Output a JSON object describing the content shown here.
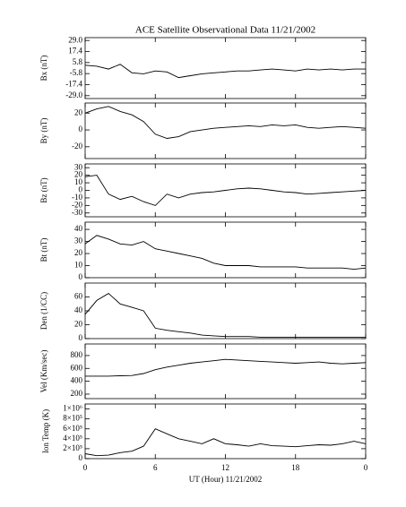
{
  "chart_data": [
    {
      "type": "line",
      "title": "ACE Satellite Observational Data   11/21/2002",
      "ylabel": "Bx (nT)",
      "color": "#000000",
      "x": [
        0,
        1,
        2,
        3,
        4,
        5,
        6,
        7,
        8,
        9,
        10,
        11,
        12,
        13,
        14,
        15,
        16,
        17,
        18,
        19,
        20,
        21,
        22,
        23,
        24
      ],
      "values": [
        3,
        2,
        -1,
        4,
        -5,
        -6,
        -3,
        -4,
        -10,
        -8,
        -6,
        -5,
        -4,
        -3,
        -3,
        -2,
        -1,
        -2,
        -3,
        -1,
        -2,
        -1,
        -2,
        -1,
        -1
      ],
      "xlim": [
        0,
        24
      ],
      "ylim": [
        -32,
        32
      ],
      "yticks": [
        {
          "value": 29,
          "label": "29.0"
        },
        17.4,
        5.8,
        -5.8,
        -17.4,
        {
          "value": -29,
          "label": "-29.0"
        }
      ]
    },
    {
      "type": "line",
      "ylabel": "By (nT)",
      "color": "#000000",
      "x": [
        0,
        1,
        2,
        3,
        4,
        5,
        6,
        7,
        8,
        9,
        10,
        11,
        12,
        13,
        14,
        15,
        16,
        17,
        18,
        19,
        20,
        21,
        22,
        23,
        24
      ],
      "values": [
        20,
        25,
        28,
        22,
        18,
        10,
        -5,
        -10,
        -8,
        -2,
        0,
        2,
        3,
        4,
        5,
        4,
        6,
        5,
        6,
        3,
        2,
        3,
        4,
        3,
        2
      ],
      "xlim": [
        0,
        24
      ],
      "ylim": [
        -34,
        32
      ],
      "yticks": [
        20,
        0,
        -20
      ]
    },
    {
      "type": "line",
      "ylabel": "Bz (nT)",
      "color": "#000000",
      "x": [
        0,
        1,
        2,
        3,
        4,
        5,
        6,
        7,
        8,
        9,
        10,
        11,
        12,
        13,
        14,
        15,
        16,
        17,
        18,
        19,
        20,
        21,
        22,
        23,
        24
      ],
      "values": [
        18,
        20,
        -5,
        -12,
        -8,
        -15,
        -20,
        -5,
        -10,
        -5,
        -3,
        -2,
        0,
        2,
        3,
        2,
        0,
        -2,
        -3,
        -5,
        -4,
        -3,
        -2,
        -1,
        0
      ],
      "xlim": [
        0,
        24
      ],
      "ylim": [
        -35,
        35
      ],
      "yticks": [
        30,
        20,
        10,
        0,
        -10,
        -20,
        -30
      ]
    },
    {
      "type": "line",
      "ylabel": "Bt (nT)",
      "color": "#000000",
      "x": [
        0,
        1,
        2,
        3,
        4,
        5,
        6,
        7,
        8,
        9,
        10,
        11,
        12,
        13,
        14,
        15,
        16,
        17,
        18,
        19,
        20,
        21,
        22,
        23,
        24
      ],
      "values": [
        28,
        35,
        32,
        28,
        27,
        30,
        24,
        22,
        20,
        18,
        16,
        12,
        10,
        10,
        10,
        9,
        9,
        9,
        9,
        8,
        8,
        8,
        8,
        7,
        8
      ],
      "xlim": [
        0,
        24
      ],
      "ylim": [
        0,
        46
      ],
      "yticks": [
        40,
        30,
        20,
        10,
        0
      ]
    },
    {
      "type": "line",
      "ylabel": "Den (1/CC)",
      "color": "#000000",
      "x": [
        0,
        1,
        2,
        3,
        4,
        5,
        6,
        7,
        8,
        9,
        10,
        11,
        12,
        13,
        14,
        15,
        16,
        17,
        18,
        19,
        20,
        21,
        22,
        23,
        24
      ],
      "values": [
        35,
        55,
        65,
        50,
        45,
        40,
        15,
        12,
        10,
        8,
        5,
        4,
        3,
        3,
        3,
        2,
        2,
        2,
        2,
        2,
        2,
        2,
        2,
        2,
        2
      ],
      "xlim": [
        0,
        24
      ],
      "ylim": [
        0,
        80
      ],
      "yticks": [
        60,
        40,
        20,
        0
      ]
    },
    {
      "type": "line",
      "ylabel": "Vel (Km/sec)",
      "color": "#000000",
      "x": [
        0,
        1,
        2,
        3,
        4,
        5,
        6,
        7,
        8,
        9,
        10,
        11,
        12,
        13,
        14,
        15,
        16,
        17,
        18,
        19,
        20,
        21,
        22,
        23,
        24
      ],
      "values": [
        480,
        480,
        480,
        485,
        490,
        520,
        580,
        620,
        650,
        680,
        700,
        720,
        740,
        730,
        720,
        710,
        700,
        690,
        680,
        690,
        700,
        680,
        670,
        680,
        690
      ],
      "xlim": [
        0,
        24
      ],
      "ylim": [
        130,
        980
      ],
      "yticks": [
        800,
        600,
        400,
        200
      ]
    },
    {
      "type": "line",
      "ylabel": "Ion Temp (K)",
      "xlabel": "UT (Hour)  11/21/2002",
      "color": "#000000",
      "x": [
        0,
        1,
        2,
        3,
        4,
        5,
        6,
        7,
        8,
        9,
        10,
        11,
        12,
        13,
        14,
        15,
        16,
        17,
        18,
        19,
        20,
        21,
        22,
        23,
        24
      ],
      "values": [
        100000,
        60000,
        70000,
        120000,
        150000,
        250000,
        600000,
        500000,
        400000,
        350000,
        300000,
        400000,
        300000,
        280000,
        250000,
        300000,
        260000,
        250000,
        240000,
        260000,
        280000,
        270000,
        300000,
        350000,
        300000
      ],
      "xlim": [
        0,
        24
      ],
      "ylim": [
        0,
        1100000
      ],
      "yticks": [
        {
          "value": 1000000,
          "label": "1×10⁶"
        },
        {
          "value": 800000,
          "label": "8×10⁵"
        },
        {
          "value": 600000,
          "label": "6×10⁵"
        },
        {
          "value": 400000,
          "label": "4×10⁵"
        },
        {
          "value": 200000,
          "label": "2×10⁵"
        },
        0
      ],
      "xticks": [
        0,
        6,
        12,
        18,
        {
          "value": 24,
          "label": "0"
        }
      ]
    }
  ]
}
